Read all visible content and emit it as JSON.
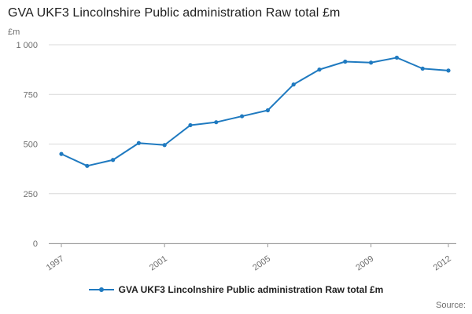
{
  "source_label": "Source:",
  "chart_data": {
    "type": "line",
    "title": "GVA UKF3 Lincolnshire Public administration Raw total £m",
    "legend_label": "GVA UKF3 Lincolnshire Public administration Raw total £m",
    "ylabel": "£m",
    "xlabel": "",
    "x": [
      1997,
      1998,
      1999,
      2000,
      2001,
      2002,
      2003,
      2004,
      2005,
      2006,
      2007,
      2008,
      2009,
      2010,
      2011,
      2012
    ],
    "values": [
      450,
      390,
      420,
      505,
      495,
      595,
      610,
      640,
      670,
      800,
      875,
      915,
      910,
      935,
      880,
      870
    ],
    "ylim": [
      0,
      1000
    ],
    "yticks": [
      0,
      250,
      500,
      750,
      1000
    ],
    "ytick_labels": [
      "0",
      "250",
      "500",
      "750",
      "1 000"
    ],
    "xticks": [
      1997,
      2001,
      2005,
      2009,
      2012
    ],
    "grid": true,
    "legend_position": "bottom",
    "line_color": "#1f7ac0"
  }
}
